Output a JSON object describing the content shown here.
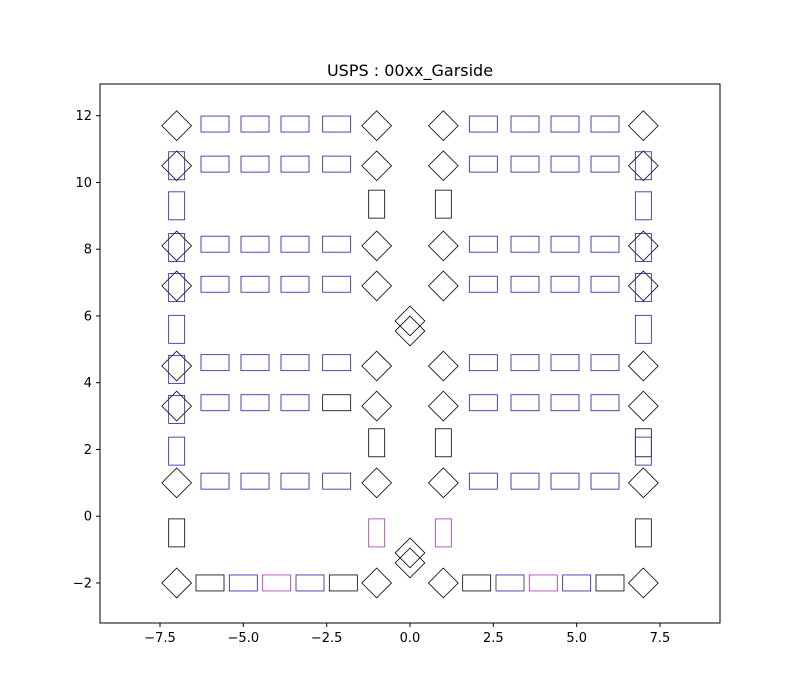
{
  "chart_data": {
    "type": "scatter",
    "title": "USPS : 00xx_Garside",
    "xlabel": "",
    "ylabel": "",
    "xlim": [
      -9.3,
      9.3
    ],
    "ylim": [
      -3.2,
      12.95
    ],
    "xticks": [
      -7.5,
      -5.0,
      -2.5,
      0.0,
      2.5,
      5.0,
      7.5
    ],
    "xtick_labels": [
      "−7.5",
      "−5.0",
      "−2.5",
      "0.0",
      "2.5",
      "5.0",
      "7.5"
    ],
    "yticks": [
      -2,
      0,
      2,
      4,
      6,
      8,
      10,
      12
    ],
    "ytick_labels": [
      "−2",
      "0",
      "2",
      "4",
      "6",
      "8",
      "10",
      "12"
    ],
    "grid": false,
    "colors": {
      "black": "#000000",
      "blue": "#1f1fa0",
      "magenta": "#b030b0"
    },
    "shapes": {
      "diamonds": [
        [
          -7.0,
          11.7
        ],
        [
          -7.0,
          10.5
        ],
        [
          -7.0,
          8.1
        ],
        [
          -7.0,
          6.9
        ],
        [
          -7.0,
          4.5
        ],
        [
          -7.0,
          3.3
        ],
        [
          -7.0,
          1.0
        ],
        [
          -7.0,
          -2.0
        ],
        [
          -1.0,
          11.7
        ],
        [
          -1.0,
          10.5
        ],
        [
          -1.0,
          8.1
        ],
        [
          -1.0,
          6.9
        ],
        [
          -1.0,
          4.5
        ],
        [
          -1.0,
          3.3
        ],
        [
          -1.0,
          1.0
        ],
        [
          -1.0,
          -2.0
        ],
        [
          1.0,
          11.7
        ],
        [
          1.0,
          10.5
        ],
        [
          1.0,
          8.1
        ],
        [
          1.0,
          6.9
        ],
        [
          1.0,
          4.5
        ],
        [
          1.0,
          3.3
        ],
        [
          1.0,
          1.0
        ],
        [
          1.0,
          -2.0
        ],
        [
          7.0,
          11.7
        ],
        [
          7.0,
          10.5
        ],
        [
          7.0,
          8.1
        ],
        [
          7.0,
          6.9
        ],
        [
          7.0,
          4.5
        ],
        [
          7.0,
          3.3
        ],
        [
          7.0,
          1.0
        ],
        [
          7.0,
          -2.0
        ],
        [
          0.0,
          5.85
        ],
        [
          0.0,
          5.55
        ],
        [
          0.0,
          -1.1
        ],
        [
          0.0,
          -1.4
        ]
      ],
      "h_boxes": [
        {
          "x": -5.85,
          "y": 11.75,
          "c": "blue"
        },
        {
          "x": -4.65,
          "y": 11.75,
          "c": "blue"
        },
        {
          "x": -3.45,
          "y": 11.75,
          "c": "blue"
        },
        {
          "x": -2.2,
          "y": 11.75,
          "c": "blue"
        },
        {
          "x": 2.2,
          "y": 11.75,
          "c": "blue"
        },
        {
          "x": 3.45,
          "y": 11.75,
          "c": "blue"
        },
        {
          "x": 4.65,
          "y": 11.75,
          "c": "blue"
        },
        {
          "x": 5.85,
          "y": 11.75,
          "c": "blue"
        },
        {
          "x": -5.85,
          "y": 10.55,
          "c": "blue"
        },
        {
          "x": -4.65,
          "y": 10.55,
          "c": "blue"
        },
        {
          "x": -3.45,
          "y": 10.55,
          "c": "blue"
        },
        {
          "x": -2.2,
          "y": 10.55,
          "c": "blue"
        },
        {
          "x": 2.2,
          "y": 10.55,
          "c": "blue"
        },
        {
          "x": 3.45,
          "y": 10.55,
          "c": "blue"
        },
        {
          "x": 4.65,
          "y": 10.55,
          "c": "blue"
        },
        {
          "x": 5.85,
          "y": 10.55,
          "c": "blue"
        },
        {
          "x": -5.85,
          "y": 8.15,
          "c": "blue"
        },
        {
          "x": -4.65,
          "y": 8.15,
          "c": "blue"
        },
        {
          "x": -3.45,
          "y": 8.15,
          "c": "blue"
        },
        {
          "x": -2.2,
          "y": 8.15,
          "c": "blue"
        },
        {
          "x": 2.2,
          "y": 8.15,
          "c": "blue"
        },
        {
          "x": 3.45,
          "y": 8.15,
          "c": "blue"
        },
        {
          "x": 4.65,
          "y": 8.15,
          "c": "blue"
        },
        {
          "x": 5.85,
          "y": 8.15,
          "c": "blue"
        },
        {
          "x": -5.85,
          "y": 6.95,
          "c": "blue"
        },
        {
          "x": -4.65,
          "y": 6.95,
          "c": "blue"
        },
        {
          "x": -3.45,
          "y": 6.95,
          "c": "blue"
        },
        {
          "x": -2.2,
          "y": 6.95,
          "c": "blue"
        },
        {
          "x": 2.2,
          "y": 6.95,
          "c": "blue"
        },
        {
          "x": 3.45,
          "y": 6.95,
          "c": "blue"
        },
        {
          "x": 4.65,
          "y": 6.95,
          "c": "blue"
        },
        {
          "x": 5.85,
          "y": 6.95,
          "c": "blue"
        },
        {
          "x": -5.85,
          "y": 4.6,
          "c": "blue"
        },
        {
          "x": -4.65,
          "y": 4.6,
          "c": "blue"
        },
        {
          "x": -3.45,
          "y": 4.6,
          "c": "blue"
        },
        {
          "x": -2.2,
          "y": 4.6,
          "c": "blue"
        },
        {
          "x": 2.2,
          "y": 4.6,
          "c": "blue"
        },
        {
          "x": 3.45,
          "y": 4.6,
          "c": "blue"
        },
        {
          "x": 4.65,
          "y": 4.6,
          "c": "blue"
        },
        {
          "x": 5.85,
          "y": 4.6,
          "c": "blue"
        },
        {
          "x": -5.85,
          "y": 3.4,
          "c": "blue"
        },
        {
          "x": -4.65,
          "y": 3.4,
          "c": "blue"
        },
        {
          "x": -3.45,
          "y": 3.4,
          "c": "blue"
        },
        {
          "x": -2.2,
          "y": 3.4,
          "c": "black"
        },
        {
          "x": 2.2,
          "y": 3.4,
          "c": "blue"
        },
        {
          "x": 3.45,
          "y": 3.4,
          "c": "blue"
        },
        {
          "x": 4.65,
          "y": 3.4,
          "c": "blue"
        },
        {
          "x": 5.85,
          "y": 3.4,
          "c": "blue"
        },
        {
          "x": -5.85,
          "y": 1.05,
          "c": "blue"
        },
        {
          "x": -4.65,
          "y": 1.05,
          "c": "blue"
        },
        {
          "x": -3.45,
          "y": 1.05,
          "c": "blue"
        },
        {
          "x": -2.2,
          "y": 1.05,
          "c": "blue"
        },
        {
          "x": 2.2,
          "y": 1.05,
          "c": "blue"
        },
        {
          "x": 3.45,
          "y": 1.05,
          "c": "blue"
        },
        {
          "x": 4.65,
          "y": 1.05,
          "c": "blue"
        },
        {
          "x": 5.85,
          "y": 1.05,
          "c": "blue"
        },
        {
          "x": -6.0,
          "y": -2.0,
          "c": "black"
        },
        {
          "x": -5.0,
          "y": -2.0,
          "c": "blue"
        },
        {
          "x": -4.0,
          "y": -2.0,
          "c": "magenta"
        },
        {
          "x": -3.0,
          "y": -2.0,
          "c": "blue"
        },
        {
          "x": -2.0,
          "y": -2.0,
          "c": "black"
        },
        {
          "x": 2.0,
          "y": -2.0,
          "c": "black"
        },
        {
          "x": 3.0,
          "y": -2.0,
          "c": "blue"
        },
        {
          "x": 4.0,
          "y": -2.0,
          "c": "magenta"
        },
        {
          "x": 5.0,
          "y": -2.0,
          "c": "blue"
        },
        {
          "x": 6.0,
          "y": -2.0,
          "c": "black"
        }
      ],
      "v_boxes": [
        {
          "x": -7.0,
          "y": 10.5,
          "c": "blue"
        },
        {
          "x": -7.0,
          "y": 9.3,
          "c": "blue"
        },
        {
          "x": -7.0,
          "y": 8.05,
          "c": "blue"
        },
        {
          "x": -7.0,
          "y": 6.85,
          "c": "blue"
        },
        {
          "x": -7.0,
          "y": 5.6,
          "c": "blue"
        },
        {
          "x": -7.0,
          "y": 4.4,
          "c": "blue"
        },
        {
          "x": -7.0,
          "y": 3.2,
          "c": "blue"
        },
        {
          "x": -7.0,
          "y": 1.95,
          "c": "blue"
        },
        {
          "x": -7.0,
          "y": -0.5,
          "c": "black"
        },
        {
          "x": 7.0,
          "y": 10.5,
          "c": "blue"
        },
        {
          "x": 7.0,
          "y": 9.3,
          "c": "blue"
        },
        {
          "x": 7.0,
          "y": 8.05,
          "c": "blue"
        },
        {
          "x": 7.0,
          "y": 6.85,
          "c": "blue"
        },
        {
          "x": 7.0,
          "y": 5.6,
          "c": "blue"
        },
        {
          "x": 7.0,
          "y": 2.2,
          "c": "black"
        },
        {
          "x": 7.0,
          "y": 1.95,
          "c": "blue"
        },
        {
          "x": 7.0,
          "y": -0.5,
          "c": "black"
        },
        {
          "x": -1.0,
          "y": 9.35,
          "c": "black"
        },
        {
          "x": 1.0,
          "y": 9.35,
          "c": "black"
        },
        {
          "x": -1.0,
          "y": 2.2,
          "c": "black"
        },
        {
          "x": 1.0,
          "y": 2.2,
          "c": "black"
        },
        {
          "x": -1.0,
          "y": -0.5,
          "c": "magenta"
        },
        {
          "x": 1.0,
          "y": -0.5,
          "c": "magenta"
        }
      ]
    }
  }
}
